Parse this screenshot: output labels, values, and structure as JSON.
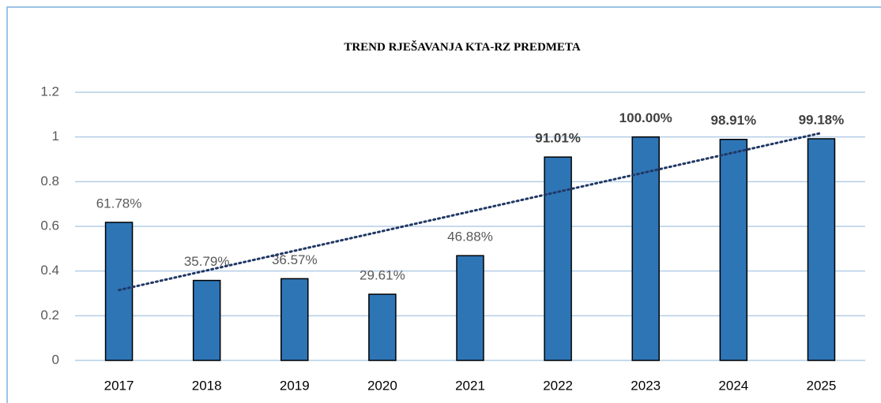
{
  "chart_data": {
    "type": "bar",
    "title": "TREND RJEŠAVANJA  KTA-RZ PREDMETA",
    "categories": [
      "2017",
      "2018",
      "2019",
      "2020",
      "2021",
      "2022",
      "2023",
      "2024",
      "2025"
    ],
    "values": [
      0.6178,
      0.3579,
      0.3657,
      0.2961,
      0.4688,
      0.9101,
      1.0,
      0.9891,
      0.9918
    ],
    "value_labels": [
      "61.78%",
      "35.79%",
      "36.57%",
      "29.61%",
      "46.88%",
      "91.01%",
      "100.00%",
      "98.91%",
      "99.18%"
    ],
    "value_label_bold": [
      false,
      false,
      false,
      false,
      false,
      true,
      true,
      true,
      true
    ],
    "color": "#2e75b6",
    "ylim": [
      0,
      1.2
    ],
    "yticks": [
      0,
      0.2,
      0.4,
      0.6,
      0.8,
      1,
      1.2
    ],
    "grid": true,
    "trendline": "linear"
  }
}
